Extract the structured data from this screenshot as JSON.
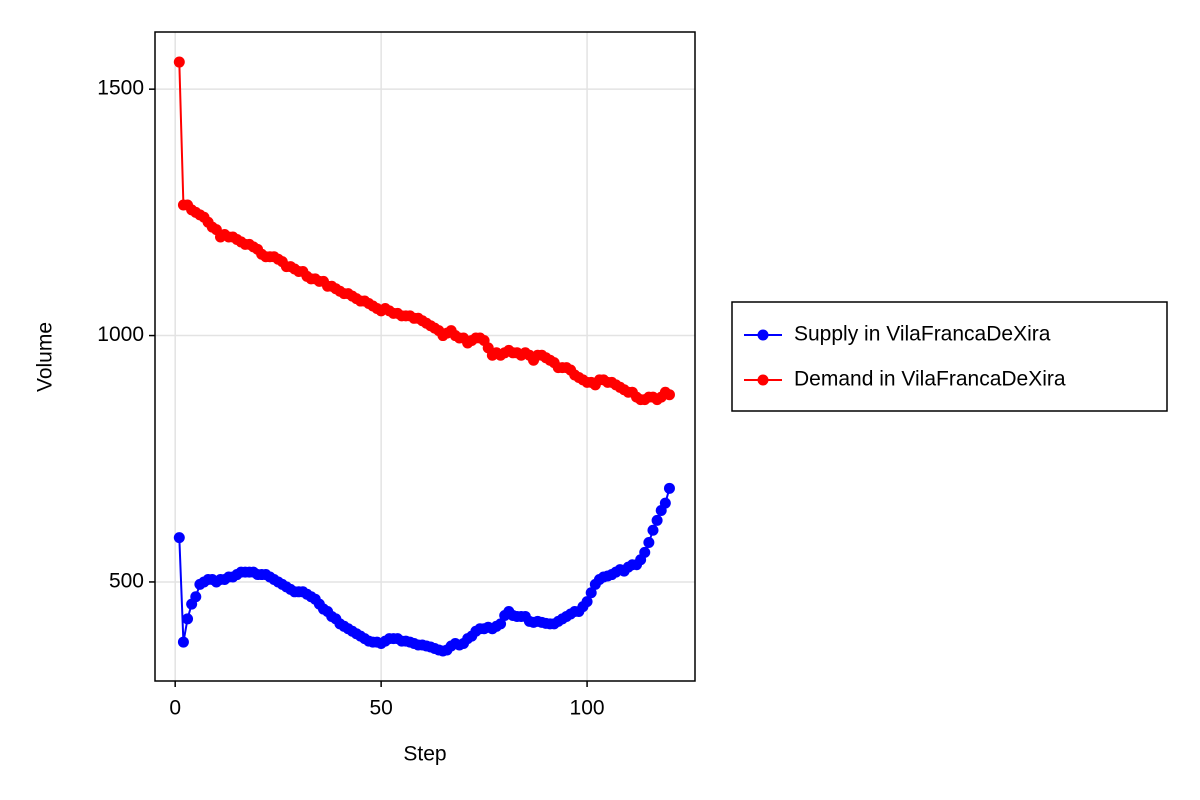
{
  "chart_data": {
    "type": "line",
    "x_label": "Step",
    "y_label": "Volume",
    "x": [
      1,
      2,
      3,
      4,
      5,
      6,
      7,
      8,
      9,
      10,
      11,
      12,
      13,
      14,
      15,
      16,
      17,
      18,
      19,
      20,
      21,
      22,
      23,
      24,
      25,
      26,
      27,
      28,
      29,
      30,
      31,
      32,
      33,
      34,
      35,
      36,
      37,
      38,
      39,
      40,
      41,
      42,
      43,
      44,
      45,
      46,
      47,
      48,
      49,
      50,
      51,
      52,
      53,
      54,
      55,
      56,
      57,
      58,
      59,
      60,
      61,
      62,
      63,
      64,
      65,
      66,
      67,
      68,
      69,
      70,
      71,
      72,
      73,
      74,
      75,
      76,
      77,
      78,
      79,
      80,
      81,
      82,
      83,
      84,
      85,
      86,
      87,
      88,
      89,
      90,
      91,
      92,
      93,
      94,
      95,
      96,
      97,
      98,
      99,
      100,
      101,
      102,
      103,
      104,
      105,
      106,
      107,
      108,
      109,
      110,
      111,
      112,
      113,
      114,
      115,
      116,
      117,
      118,
      119,
      120
    ],
    "series": [
      {
        "name": "Supply in VilaFrancaDeXira",
        "color": "#0000ff",
        "values": [
          590,
          378,
          425,
          455,
          470,
          495,
          500,
          505,
          505,
          500,
          505,
          505,
          510,
          510,
          515,
          520,
          520,
          520,
          520,
          515,
          515,
          515,
          510,
          505,
          500,
          495,
          490,
          485,
          480,
          480,
          480,
          475,
          470,
          465,
          455,
          445,
          440,
          430,
          425,
          415,
          410,
          405,
          400,
          395,
          390,
          385,
          380,
          378,
          378,
          375,
          380,
          385,
          385,
          385,
          380,
          380,
          378,
          375,
          372,
          372,
          370,
          368,
          365,
          362,
          360,
          362,
          370,
          375,
          372,
          375,
          385,
          390,
          400,
          405,
          405,
          408,
          405,
          410,
          415,
          432,
          440,
          432,
          430,
          430,
          430,
          420,
          418,
          420,
          418,
          416,
          415,
          415,
          420,
          425,
          430,
          435,
          440,
          440,
          450,
          460,
          478,
          495,
          505,
          510,
          512,
          515,
          520,
          525,
          522,
          530,
          535,
          535,
          545,
          560,
          580,
          605,
          625,
          645,
          660,
          690
        ]
      },
      {
        "name": "Demand in VilaFrancaDeXira",
        "color": "#ff0000",
        "values": [
          1555,
          1265,
          1265,
          1255,
          1250,
          1245,
          1240,
          1230,
          1220,
          1215,
          1200,
          1205,
          1200,
          1200,
          1195,
          1190,
          1185,
          1185,
          1180,
          1175,
          1165,
          1160,
          1160,
          1160,
          1155,
          1150,
          1140,
          1140,
          1135,
          1130,
          1130,
          1120,
          1115,
          1115,
          1110,
          1110,
          1100,
          1100,
          1095,
          1090,
          1085,
          1085,
          1080,
          1075,
          1070,
          1070,
          1065,
          1060,
          1055,
          1050,
          1055,
          1050,
          1045,
          1045,
          1040,
          1040,
          1040,
          1035,
          1035,
          1030,
          1025,
          1020,
          1015,
          1010,
          1000,
          1005,
          1010,
          1000,
          995,
          995,
          985,
          990,
          995,
          995,
          990,
          975,
          960,
          965,
          960,
          965,
          970,
          965,
          965,
          960,
          965,
          960,
          950,
          960,
          960,
          955,
          950,
          945,
          935,
          935,
          935,
          930,
          920,
          915,
          910,
          905,
          905,
          900,
          910,
          910,
          905,
          905,
          900,
          895,
          890,
          885,
          885,
          875,
          870,
          870,
          875,
          875,
          870,
          875,
          885,
          880
        ]
      }
    ],
    "xlim": [
      -4.9,
      126.2
    ],
    "ylim": [
      299,
      1616
    ],
    "xticks": [
      0,
      50,
      100
    ],
    "yticks": [
      500,
      1000,
      1500
    ],
    "grid": true,
    "legend": "right"
  }
}
